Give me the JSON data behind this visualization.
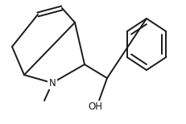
{
  "bg_color": "#ffffff",
  "line_color": "#1a1a1a",
  "line_width": 1.4,
  "font_size": 8.5
}
